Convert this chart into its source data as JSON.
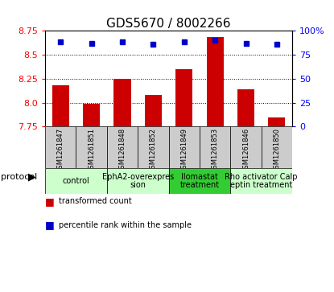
{
  "title": "GDS5670 / 8002266",
  "samples": [
    "GSM1261847",
    "GSM1261851",
    "GSM1261848",
    "GSM1261852",
    "GSM1261849",
    "GSM1261853",
    "GSM1261846",
    "GSM1261850"
  ],
  "transformed_counts": [
    8.18,
    7.99,
    8.25,
    8.08,
    8.35,
    8.68,
    8.14,
    7.85
  ],
  "percentile_ranks": [
    88,
    87,
    88,
    86,
    88,
    90,
    87,
    86
  ],
  "ylim_left": [
    7.75,
    8.75
  ],
  "ylim_right": [
    0,
    100
  ],
  "yticks_left": [
    7.75,
    8.0,
    8.25,
    8.5,
    8.75
  ],
  "yticks_right": [
    0,
    25,
    50,
    75,
    100
  ],
  "bar_color": "#cc0000",
  "dot_color": "#0000cc",
  "bar_bottom": 7.75,
  "protocol_groups": [
    {
      "label": "control",
      "indices": [
        0,
        1
      ],
      "color": "#ccffcc"
    },
    {
      "label": "EphA2-overexpres\nsion",
      "indices": [
        2,
        3
      ],
      "color": "#ccffcc"
    },
    {
      "label": "Ilomastat\ntreatment",
      "indices": [
        4,
        5
      ],
      "color": "#33cc33"
    },
    {
      "label": "Rho activator Calp\neptin treatment",
      "indices": [
        6,
        7
      ],
      "color": "#ccffcc"
    }
  ],
  "legend_bar_label": "transformed count",
  "legend_dot_label": "percentile rank within the sample",
  "protocol_label": "protocol",
  "title_fontsize": 11,
  "tick_fontsize": 8,
  "sample_fontsize": 6,
  "proto_fontsize": 7,
  "legend_fontsize": 7,
  "grid_color": "#000000",
  "bg_color": "#cccccc"
}
